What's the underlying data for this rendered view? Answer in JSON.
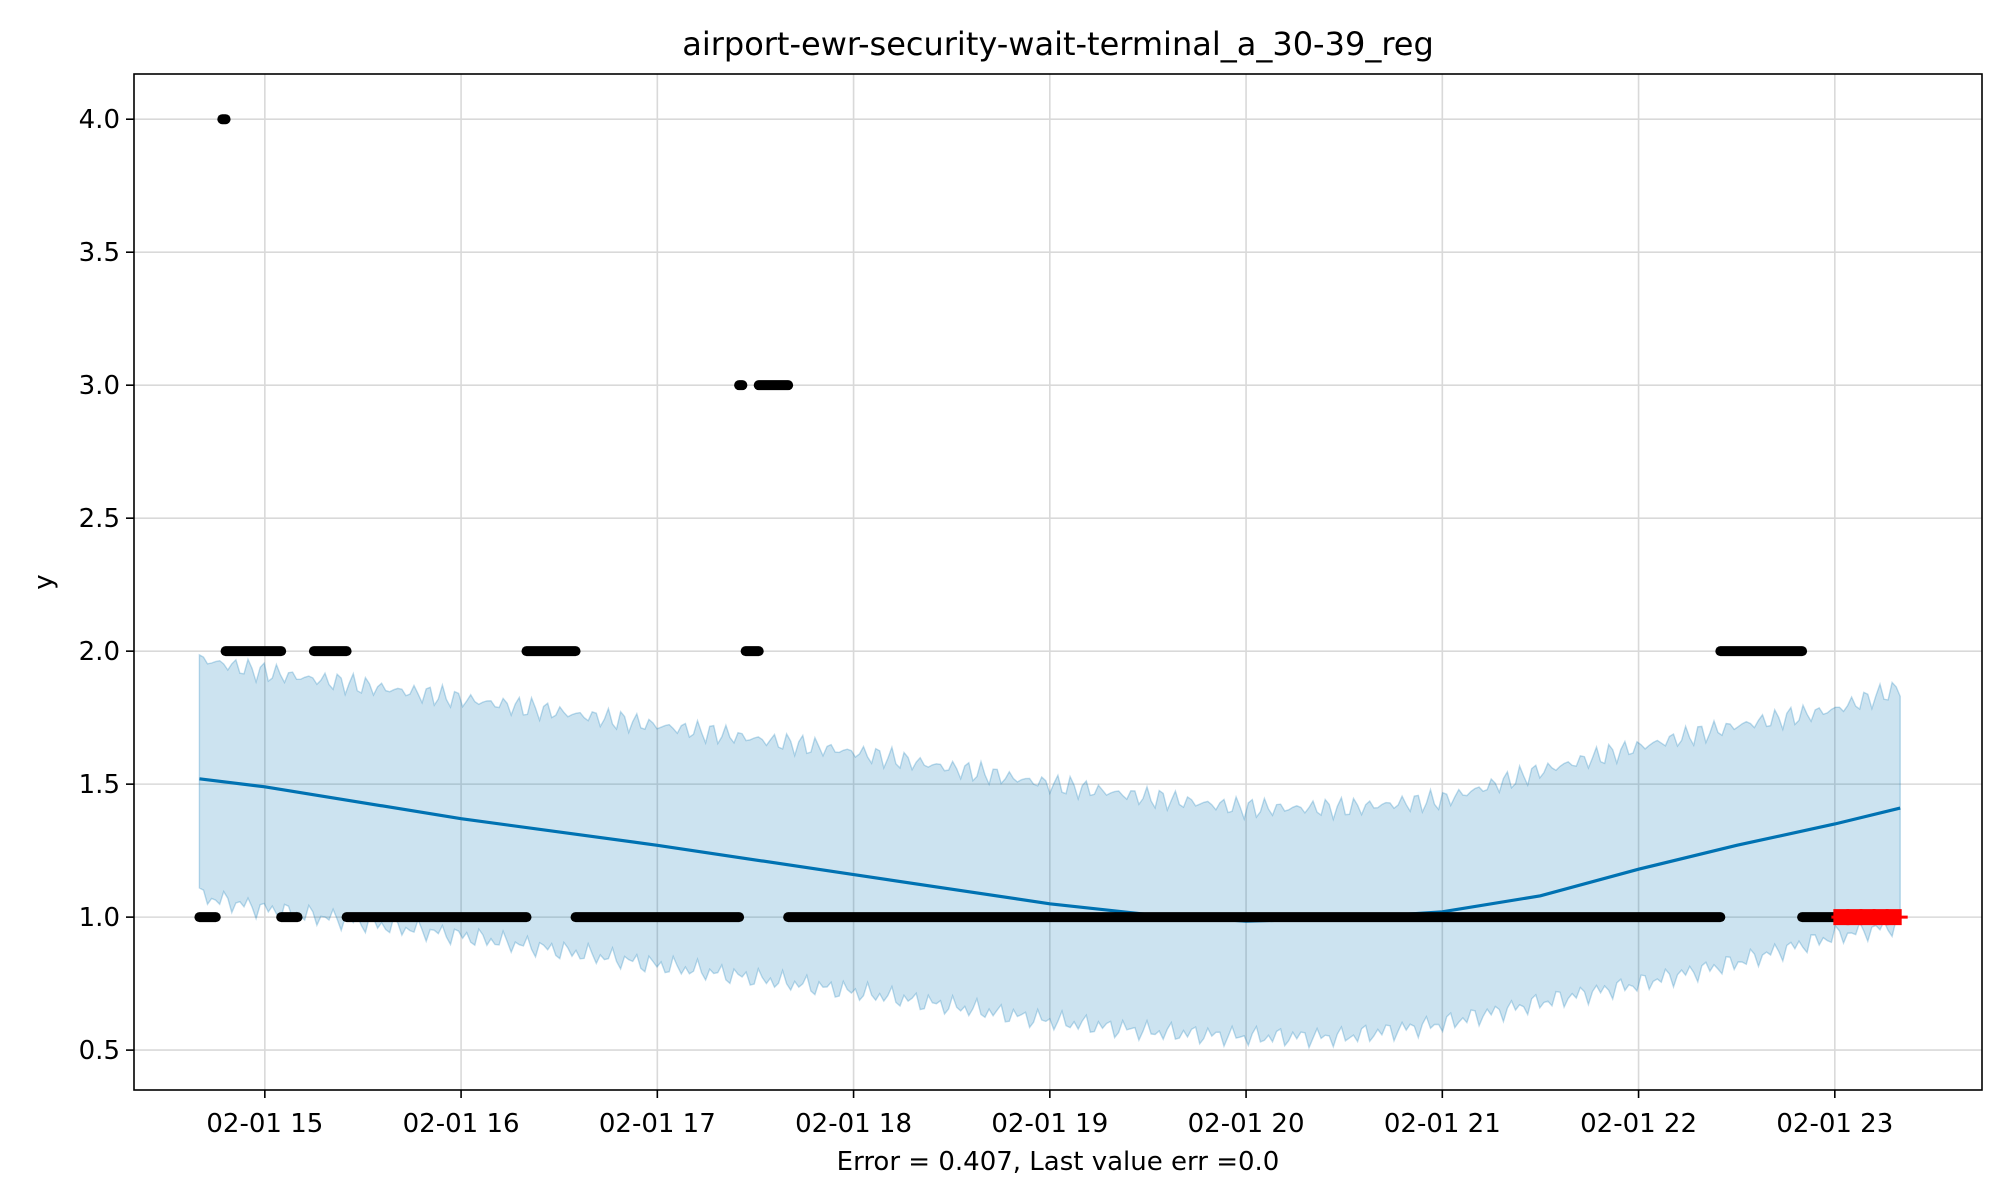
{
  "chart_data": {
    "type": "line",
    "title": "airport-ewr-security-wait-terminal_a_30-39_reg",
    "xlabel": "Error = 0.407, Last value err =0.0",
    "ylabel": "y",
    "x_axis": "datetime",
    "xlim": [
      "02-01 14:20",
      "02-01 23:45"
    ],
    "ylim": [
      0.35,
      4.17
    ],
    "x_ticks": [
      "02-01 15",
      "02-01 16",
      "02-01 17",
      "02-01 18",
      "02-01 19",
      "02-01 20",
      "02-01 21",
      "02-01 22",
      "02-01 23"
    ],
    "y_ticks": [
      "0.5",
      "1.0",
      "1.5",
      "2.0",
      "2.5",
      "3.0",
      "3.5",
      "4.0"
    ],
    "grid": true,
    "colors": {
      "forecast": "#0072B2",
      "interval": "#0072B2",
      "observed": "#000000",
      "test": "#ff0000",
      "grid": "#d9d9d9"
    },
    "forecast": {
      "x": [
        "02-01 14:40",
        "02-01 15:00",
        "02-01 16:00",
        "02-01 17:00",
        "02-01 18:00",
        "02-01 19:00",
        "02-01 19:30",
        "02-01 20:00",
        "02-01 20:30",
        "02-01 21:00",
        "02-01 21:30",
        "02-01 22:00",
        "02-01 22:30",
        "02-01 23:00",
        "02-01 23:20"
      ],
      "yhat": [
        1.52,
        1.49,
        1.37,
        1.27,
        1.16,
        1.05,
        1.01,
        0.985,
        0.995,
        1.02,
        1.08,
        1.18,
        1.27,
        1.35,
        1.41
      ],
      "yhat_upper": [
        1.97,
        1.92,
        1.82,
        1.72,
        1.62,
        1.5,
        1.45,
        1.41,
        1.41,
        1.44,
        1.55,
        1.64,
        1.72,
        1.78,
        1.86
      ],
      "yhat_lower": [
        1.08,
        1.03,
        0.93,
        0.82,
        0.72,
        0.61,
        0.57,
        0.55,
        0.55,
        0.6,
        0.68,
        0.75,
        0.83,
        0.93,
        0.97
      ]
    },
    "observed_segments": [
      {
        "start": "02-01 14:40",
        "end": "02-01 14:45",
        "y": 1.0
      },
      {
        "start": "02-01 14:47",
        "end": "02-01 14:48",
        "y": 4.0
      },
      {
        "start": "02-01 14:48",
        "end": "02-01 15:05",
        "y": 2.0
      },
      {
        "start": "02-01 15:05",
        "end": "02-01 15:10",
        "y": 1.0
      },
      {
        "start": "02-01 15:15",
        "end": "02-01 15:25",
        "y": 2.0
      },
      {
        "start": "02-01 15:25",
        "end": "02-01 16:20",
        "y": 1.0
      },
      {
        "start": "02-01 16:20",
        "end": "02-01 16:35",
        "y": 2.0
      },
      {
        "start": "02-01 16:35",
        "end": "02-01 17:25",
        "y": 1.0
      },
      {
        "start": "02-01 17:25",
        "end": "02-01 17:26",
        "y": 3.0
      },
      {
        "start": "02-01 17:27",
        "end": "02-01 17:31",
        "y": 2.0
      },
      {
        "start": "02-01 17:31",
        "end": "02-01 17:40",
        "y": 3.0
      },
      {
        "start": "02-01 17:40",
        "end": "02-01 22:25",
        "y": 1.0
      },
      {
        "start": "02-01 22:25",
        "end": "02-01 22:50",
        "y": 2.0
      },
      {
        "start": "02-01 22:50",
        "end": "02-01 23:00",
        "y": 1.0
      }
    ],
    "test_points": {
      "x": [
        "02-01 23:02",
        "02-01 23:06",
        "02-01 23:10",
        "02-01 23:14",
        "02-01 23:18"
      ],
      "y": [
        1.0,
        1.0,
        1.0,
        1.0,
        1.0
      ]
    }
  }
}
